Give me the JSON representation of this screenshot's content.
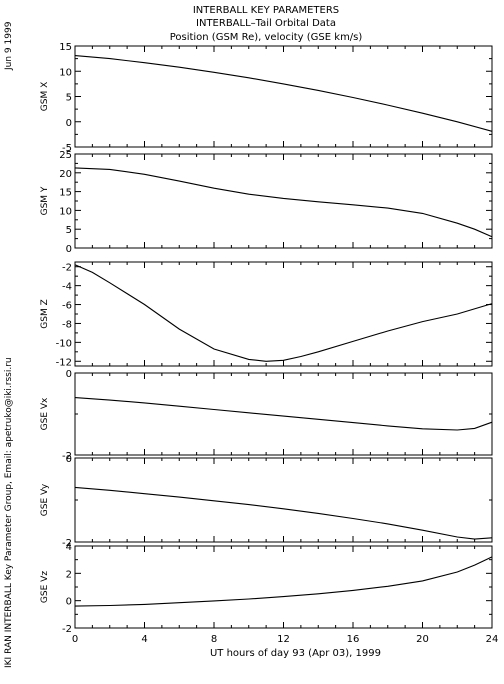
{
  "header": {
    "title_line1": "INTERBALL KEY PARAMETERS",
    "title_line2": "INTERBALL–Tail Orbital Data",
    "title_line3": "Position (GSM Re), velocity (GSE km/s)"
  },
  "side_text": {
    "date": "Jun  9 1999",
    "credit": "IKI RAN INTERBALL Key Parameter Group, Email: apetruko@iki.rssi.ru"
  },
  "chart_data": [
    {
      "type": "line",
      "ylabel": "GSM X",
      "ylim": [
        -5,
        15
      ],
      "yticks": [
        -5,
        0,
        5,
        10,
        15
      ],
      "x": [
        0,
        2,
        4,
        6,
        8,
        10,
        12,
        14,
        16,
        18,
        20,
        22,
        24
      ],
      "values": [
        13.1,
        12.5,
        11.7,
        10.8,
        9.8,
        8.7,
        7.5,
        6.2,
        4.8,
        3.3,
        1.7,
        0.0,
        -1.9
      ]
    },
    {
      "type": "line",
      "ylabel": "GSM Y",
      "ylim": [
        0,
        25
      ],
      "yticks": [
        0,
        5,
        10,
        15,
        20,
        25
      ],
      "x": [
        0,
        2,
        4,
        6,
        8,
        10,
        12,
        14,
        16,
        18,
        20,
        22,
        23,
        24
      ],
      "values": [
        21.3,
        20.9,
        19.6,
        17.8,
        15.9,
        14.3,
        13.2,
        12.3,
        11.5,
        10.6,
        9.2,
        6.6,
        5.0,
        3.0
      ]
    },
    {
      "type": "line",
      "ylabel": "GSM Z",
      "ylim": [
        -12.5,
        -1.5
      ],
      "yticks": [
        -12,
        -10,
        -8,
        -6,
        -4,
        -2
      ],
      "x": [
        0,
        1,
        2,
        4,
        6,
        8,
        10,
        11,
        12,
        13,
        14,
        16,
        18,
        20,
        22,
        24
      ],
      "values": [
        -1.8,
        -2.6,
        -3.7,
        -6.0,
        -8.6,
        -10.7,
        -11.8,
        -12.0,
        -11.9,
        -11.5,
        -11.0,
        -9.9,
        -8.8,
        -7.8,
        -7.0,
        -5.9
      ]
    },
    {
      "type": "line",
      "ylabel": "GSE Vx",
      "ylim": [
        -2,
        0
      ],
      "yticks": [
        -2,
        0
      ],
      "x": [
        0,
        2,
        4,
        6,
        8,
        10,
        12,
        14,
        16,
        18,
        20,
        22,
        23,
        24
      ],
      "values": [
        -0.6,
        -0.66,
        -0.73,
        -0.81,
        -0.89,
        -0.97,
        -1.05,
        -1.13,
        -1.21,
        -1.29,
        -1.36,
        -1.39,
        -1.35,
        -1.2
      ]
    },
    {
      "type": "line",
      "ylabel": "GSE Vy",
      "ylim": [
        -2,
        0
      ],
      "yticks": [
        -2,
        0
      ],
      "x": [
        0,
        2,
        4,
        6,
        8,
        10,
        12,
        14,
        16,
        18,
        20,
        22,
        23,
        24
      ],
      "values": [
        -0.7,
        -0.77,
        -0.85,
        -0.93,
        -1.02,
        -1.11,
        -1.21,
        -1.32,
        -1.44,
        -1.57,
        -1.72,
        -1.88,
        -1.93,
        -1.9
      ]
    },
    {
      "type": "line",
      "ylabel": "GSE Vz",
      "ylim": [
        -2,
        4
      ],
      "yticks": [
        -2,
        0,
        2,
        4
      ],
      "x": [
        0,
        2,
        4,
        6,
        8,
        10,
        12,
        14,
        16,
        18,
        20,
        22,
        23,
        24
      ],
      "values": [
        -0.4,
        -0.35,
        -0.27,
        -0.15,
        -0.02,
        0.12,
        0.3,
        0.5,
        0.75,
        1.05,
        1.45,
        2.1,
        2.6,
        3.2
      ],
      "xlabel": "UT hours of day  93 (Apr 03), 1999",
      "xticks": [
        0,
        4,
        8,
        12,
        16,
        20,
        24
      ],
      "xlim": [
        0,
        24
      ]
    }
  ]
}
